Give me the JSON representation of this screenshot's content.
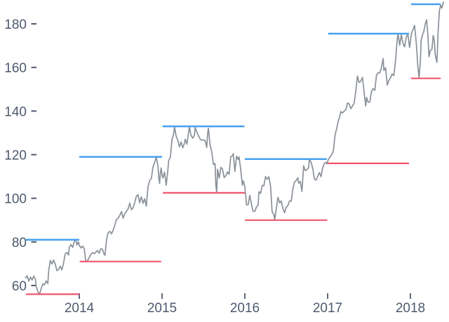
{
  "chart_data": {
    "type": "line",
    "title": "",
    "xlabel": "",
    "ylabel": "",
    "grid": false,
    "legend": "none",
    "x_axis": {
      "ticks": [
        2014,
        2015,
        2016,
        2017,
        2018
      ],
      "range": [
        2013.34,
        2018.47
      ]
    },
    "y_axis": {
      "ticks": [
        180,
        160,
        140,
        120,
        100,
        80,
        60
      ],
      "range": [
        49,
        191
      ]
    },
    "colors": {
      "high_line": "#47a1f0",
      "low_line": "#f0566e",
      "price_line": "#8a9199",
      "axis_text": "#4e5a6e",
      "background": "#ffffff"
    },
    "range_lines": [
      {
        "year": 2013,
        "type": "high",
        "value": 81,
        "t0": 2013.356,
        "t1": 2014.0
      },
      {
        "year": 2013,
        "type": "low",
        "value": 56,
        "t0": 2013.356,
        "t1": 2014.0
      },
      {
        "year": 2014,
        "type": "high",
        "value": 119,
        "t0": 2014.0,
        "t1": 2015.0
      },
      {
        "year": 2014,
        "type": "low",
        "value": 71,
        "t0": 2014.005,
        "t1": 2014.99
      },
      {
        "year": 2015,
        "type": "high",
        "value": 133,
        "t0": 2015.005,
        "t1": 2015.995
      },
      {
        "year": 2015,
        "type": "low",
        "value": 102.5,
        "t0": 2015.01,
        "t1": 2016.0
      },
      {
        "year": 2016,
        "type": "high",
        "value": 118,
        "t0": 2016.0,
        "t1": 2016.99
      },
      {
        "year": 2016,
        "type": "low",
        "value": 90,
        "t0": 2016.0,
        "t1": 2016.995
      },
      {
        "year": 2017,
        "type": "high",
        "value": 175.5,
        "t0": 2017.008,
        "t1": 2017.983
      },
      {
        "year": 2017,
        "type": "low",
        "value": 116,
        "t0": 2017.0,
        "t1": 2017.983
      },
      {
        "year": 2018,
        "type": "high",
        "value": 189,
        "t0": 2018.008,
        "t1": 2018.365
      },
      {
        "year": 2018,
        "type": "low",
        "value": 155,
        "t0": 2018.008,
        "t1": 2018.365
      }
    ],
    "price_series": [
      [
        2013.35,
        63.5
      ],
      [
        2013.37,
        64.5
      ],
      [
        2013.39,
        62.0
      ],
      [
        2013.41,
        63.9
      ],
      [
        2013.43,
        62.5
      ],
      [
        2013.45,
        64.3
      ],
      [
        2013.47,
        62.8
      ],
      [
        2013.48,
        59.5
      ],
      [
        2013.5,
        57.2
      ],
      [
        2013.52,
        55.9
      ],
      [
        2013.54,
        58.6
      ],
      [
        2013.56,
        60.8
      ],
      [
        2013.58,
        60.3
      ],
      [
        2013.6,
        62.1
      ],
      [
        2013.62,
        60.9
      ],
      [
        2013.63,
        66.5
      ],
      [
        2013.65,
        71.5
      ],
      [
        2013.67,
        69.9
      ],
      [
        2013.69,
        71.7
      ],
      [
        2013.71,
        69.8
      ],
      [
        2013.73,
        66.8
      ],
      [
        2013.75,
        67.5
      ],
      [
        2013.77,
        68.8
      ],
      [
        2013.79,
        67.2
      ],
      [
        2013.81,
        70.3
      ],
      [
        2013.83,
        74.5
      ],
      [
        2013.85,
        75.2
      ],
      [
        2013.87,
        74.0
      ],
      [
        2013.88,
        77.5
      ],
      [
        2013.9,
        78.8
      ],
      [
        2013.92,
        77.5
      ],
      [
        2013.94,
        80.2
      ],
      [
        2013.96,
        81.2
      ],
      [
        2013.97,
        78.6
      ],
      [
        2013.99,
        80.0
      ],
      [
        2014.0,
        78.4
      ],
      [
        2014.02,
        77.2
      ],
      [
        2014.04,
        78.1
      ],
      [
        2014.06,
        76.9
      ],
      [
        2014.08,
        70.8
      ],
      [
        2014.1,
        71.4
      ],
      [
        2014.12,
        72.9
      ],
      [
        2014.14,
        74.3
      ],
      [
        2014.16,
        75.1
      ],
      [
        2014.18,
        74.6
      ],
      [
        2014.2,
        75.3
      ],
      [
        2014.22,
        76.1
      ],
      [
        2014.24,
        74.8
      ],
      [
        2014.26,
        76.9
      ],
      [
        2014.28,
        76.6
      ],
      [
        2014.3,
        74.3
      ],
      [
        2014.31,
        73.9
      ],
      [
        2014.33,
        81.1
      ],
      [
        2014.35,
        84.4
      ],
      [
        2014.37,
        84.8
      ],
      [
        2014.39,
        83.7
      ],
      [
        2014.41,
        85.5
      ],
      [
        2014.43,
        87.8
      ],
      [
        2014.45,
        90.3
      ],
      [
        2014.47,
        90.9
      ],
      [
        2014.49,
        92.2
      ],
      [
        2014.51,
        93.9
      ],
      [
        2014.53,
        90.9
      ],
      [
        2014.55,
        92.9
      ],
      [
        2014.57,
        94.1
      ],
      [
        2014.59,
        95.1
      ],
      [
        2014.61,
        97.8
      ],
      [
        2014.63,
        94.8
      ],
      [
        2014.65,
        95.6
      ],
      [
        2014.67,
        98.1
      ],
      [
        2014.69,
        101.0
      ],
      [
        2014.71,
        101.6
      ],
      [
        2014.73,
        98.0
      ],
      [
        2014.75,
        100.7
      ],
      [
        2014.77,
        97.7
      ],
      [
        2014.79,
        99.8
      ],
      [
        2014.81,
        96.4
      ],
      [
        2014.83,
        105.2
      ],
      [
        2014.85,
        108.2
      ],
      [
        2014.87,
        109.0
      ],
      [
        2014.89,
        114.2
      ],
      [
        2014.91,
        116.4
      ],
      [
        2014.93,
        118.9
      ],
      [
        2014.95,
        115.0
      ],
      [
        2014.96,
        109.7
      ],
      [
        2014.97,
        106.8
      ],
      [
        2014.98,
        111.8
      ],
      [
        2014.99,
        113.9
      ],
      [
        2015.0,
        110.4
      ],
      [
        2015.01,
        109.3
      ],
      [
        2015.03,
        112.0
      ],
      [
        2015.05,
        106.0
      ],
      [
        2015.07,
        113.0
      ],
      [
        2015.08,
        117.2
      ],
      [
        2015.1,
        118.9
      ],
      [
        2015.12,
        127.1
      ],
      [
        2015.14,
        129.5
      ],
      [
        2015.15,
        132.8
      ],
      [
        2015.17,
        128.5
      ],
      [
        2015.19,
        126.6
      ],
      [
        2015.21,
        123.6
      ],
      [
        2015.23,
        125.9
      ],
      [
        2015.25,
        123.2
      ],
      [
        2015.27,
        125.3
      ],
      [
        2015.28,
        127.1
      ],
      [
        2015.3,
        124.8
      ],
      [
        2015.32,
        130.3
      ],
      [
        2015.33,
        133.0
      ],
      [
        2015.35,
        128.8
      ],
      [
        2015.37,
        127.6
      ],
      [
        2015.39,
        128.8
      ],
      [
        2015.4,
        132.5
      ],
      [
        2015.42,
        130.3
      ],
      [
        2015.44,
        128.7
      ],
      [
        2015.46,
        127.2
      ],
      [
        2015.48,
        126.6
      ],
      [
        2015.5,
        126.8
      ],
      [
        2015.52,
        126.4
      ],
      [
        2015.54,
        123.3
      ],
      [
        2015.55,
        129.6
      ],
      [
        2015.56,
        132.1
      ],
      [
        2015.58,
        124.5
      ],
      [
        2015.6,
        121.3
      ],
      [
        2015.62,
        115.5
      ],
      [
        2015.64,
        116.0
      ],
      [
        2015.65,
        105.8
      ],
      [
        2015.66,
        102.8
      ],
      [
        2015.67,
        113.3
      ],
      [
        2015.69,
        109.3
      ],
      [
        2015.71,
        114.2
      ],
      [
        2015.73,
        113.4
      ],
      [
        2015.75,
        109.5
      ],
      [
        2015.77,
        110.4
      ],
      [
        2015.79,
        112.1
      ],
      [
        2015.81,
        111.0
      ],
      [
        2015.83,
        119.1
      ],
      [
        2015.85,
        119.5
      ],
      [
        2015.86,
        120.5
      ],
      [
        2015.88,
        112.3
      ],
      [
        2015.9,
        119.3
      ],
      [
        2015.92,
        117.8
      ],
      [
        2015.93,
        119.0
      ],
      [
        2015.95,
        113.2
      ],
      [
        2015.97,
        106.0
      ],
      [
        2015.98,
        108.0
      ],
      [
        2015.99,
        107.0
      ],
      [
        2016.0,
        105.3
      ],
      [
        2016.02,
        97.0
      ],
      [
        2016.04,
        97.1
      ],
      [
        2016.06,
        101.4
      ],
      [
        2016.08,
        97.3
      ],
      [
        2016.1,
        94.0
      ],
      [
        2016.12,
        94.0
      ],
      [
        2016.14,
        96.0
      ],
      [
        2016.16,
        96.9
      ],
      [
        2016.17,
        103.0
      ],
      [
        2016.19,
        102.3
      ],
      [
        2016.21,
        105.9
      ],
      [
        2016.23,
        105.7
      ],
      [
        2016.25,
        110.0
      ],
      [
        2016.27,
        108.7
      ],
      [
        2016.29,
        109.9
      ],
      [
        2016.31,
        105.7
      ],
      [
        2016.33,
        93.7
      ],
      [
        2016.35,
        92.7
      ],
      [
        2016.36,
        90.2
      ],
      [
        2016.38,
        95.2
      ],
      [
        2016.4,
        100.4
      ],
      [
        2016.42,
        97.9
      ],
      [
        2016.44,
        98.8
      ],
      [
        2016.46,
        95.3
      ],
      [
        2016.48,
        93.4
      ],
      [
        2016.5,
        95.9
      ],
      [
        2016.52,
        96.7
      ],
      [
        2016.54,
        98.8
      ],
      [
        2016.56,
        98.7
      ],
      [
        2016.58,
        104.2
      ],
      [
        2016.6,
        107.5
      ],
      [
        2016.62,
        108.2
      ],
      [
        2016.64,
        109.4
      ],
      [
        2016.65,
        106.9
      ],
      [
        2016.67,
        107.7
      ],
      [
        2016.69,
        103.1
      ],
      [
        2016.71,
        114.9
      ],
      [
        2016.73,
        112.7
      ],
      [
        2016.75,
        113.1
      ],
      [
        2016.77,
        114.1
      ],
      [
        2016.78,
        117.9
      ],
      [
        2016.8,
        116.6
      ],
      [
        2016.82,
        113.7
      ],
      [
        2016.84,
        108.8
      ],
      [
        2016.86,
        108.4
      ],
      [
        2016.88,
        110.1
      ],
      [
        2016.9,
        111.8
      ],
      [
        2016.92,
        109.9
      ],
      [
        2016.94,
        114.0
      ],
      [
        2016.96,
        116.0
      ],
      [
        2016.98,
        116.5
      ],
      [
        2016.99,
        115.8
      ],
      [
        2017.01,
        117.9
      ],
      [
        2017.03,
        119.0
      ],
      [
        2017.05,
        120.0
      ],
      [
        2017.07,
        122.0
      ],
      [
        2017.09,
        129.1
      ],
      [
        2017.11,
        132.1
      ],
      [
        2017.13,
        135.7
      ],
      [
        2017.14,
        136.7
      ],
      [
        2017.16,
        139.8
      ],
      [
        2017.18,
        139.1
      ],
      [
        2017.2,
        140.0
      ],
      [
        2017.22,
        140.6
      ],
      [
        2017.24,
        143.7
      ],
      [
        2017.26,
        143.3
      ],
      [
        2017.28,
        141.1
      ],
      [
        2017.3,
        142.3
      ],
      [
        2017.32,
        143.7
      ],
      [
        2017.34,
        149.0
      ],
      [
        2017.36,
        156.1
      ],
      [
        2017.38,
        153.1
      ],
      [
        2017.4,
        153.6
      ],
      [
        2017.42,
        155.5
      ],
      [
        2017.44,
        149.0
      ],
      [
        2017.46,
        142.3
      ],
      [
        2017.47,
        146.3
      ],
      [
        2017.49,
        144.0
      ],
      [
        2017.51,
        144.2
      ],
      [
        2017.53,
        149.0
      ],
      [
        2017.55,
        150.3
      ],
      [
        2017.57,
        149.5
      ],
      [
        2017.59,
        156.4
      ],
      [
        2017.61,
        157.5
      ],
      [
        2017.63,
        157.5
      ],
      [
        2017.65,
        159.9
      ],
      [
        2017.67,
        164.1
      ],
      [
        2017.68,
        158.6
      ],
      [
        2017.7,
        159.9
      ],
      [
        2017.72,
        151.9
      ],
      [
        2017.74,
        154.1
      ],
      [
        2017.76,
        155.3
      ],
      [
        2017.78,
        157.0
      ],
      [
        2017.8,
        156.3
      ],
      [
        2017.82,
        163.1
      ],
      [
        2017.84,
        172.5
      ],
      [
        2017.85,
        175.5
      ],
      [
        2017.87,
        170.2
      ],
      [
        2017.89,
        175.0
      ],
      [
        2017.91,
        171.1
      ],
      [
        2017.93,
        169.4
      ],
      [
        2017.95,
        174.0
      ],
      [
        2017.97,
        175.0
      ],
      [
        2017.99,
        169.2
      ],
      [
        2018.01,
        175.0
      ],
      [
        2018.02,
        176.5
      ],
      [
        2018.03,
        177.1
      ],
      [
        2018.05,
        179.3
      ],
      [
        2018.07,
        171.5
      ],
      [
        2018.09,
        160.5
      ],
      [
        2018.105,
        155.2
      ],
      [
        2018.12,
        163.0
      ],
      [
        2018.13,
        172.4
      ],
      [
        2018.15,
        175.5
      ],
      [
        2018.16,
        176.2
      ],
      [
        2018.18,
        180.0
      ],
      [
        2018.195,
        181.9
      ],
      [
        2018.21,
        175.3
      ],
      [
        2018.225,
        164.9
      ],
      [
        2018.24,
        167.8
      ],
      [
        2018.26,
        168.4
      ],
      [
        2018.275,
        174.7
      ],
      [
        2018.29,
        172.0
      ],
      [
        2018.3,
        165.7
      ],
      [
        2018.32,
        162.3
      ],
      [
        2018.335,
        176.6
      ],
      [
        2018.35,
        186.0
      ],
      [
        2018.365,
        188.6
      ],
      [
        2018.38,
        187.2
      ],
      [
        2018.4,
        190.0
      ]
    ]
  }
}
